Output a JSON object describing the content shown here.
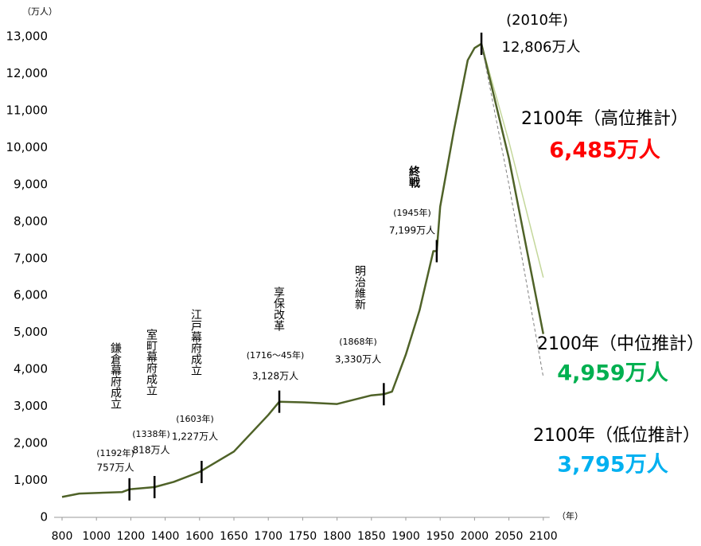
{
  "chart_data": {
    "type": "line",
    "y_unit_label": "（万人）",
    "x_unit_label": "（年）",
    "xlim": [
      800,
      2100
    ],
    "xticks": [
      800,
      1000,
      1200,
      1400,
      1600,
      1650,
      1700,
      1750,
      1800,
      1850,
      1900,
      1950,
      2000,
      2050,
      2100
    ],
    "ylim": [
      0,
      13000
    ],
    "yticks": [
      0,
      {
        "value": 1000,
        "label": "1,000"
      },
      {
        "value": 2000,
        "label": "2,000"
      },
      {
        "value": 3000,
        "label": "3,000"
      },
      {
        "value": 4000,
        "label": "4,000"
      },
      {
        "value": 5000,
        "label": "5,000"
      },
      {
        "value": 6000,
        "label": "6,000"
      },
      {
        "value": 7000,
        "label": "7,000"
      },
      {
        "value": 8000,
        "label": "8,000"
      },
      {
        "value": 9000,
        "label": "9,000"
      },
      {
        "value": 10000,
        "label": "10,000"
      },
      {
        "value": 11000,
        "label": "11,000"
      },
      {
        "value": 12000,
        "label": "12,000"
      },
      {
        "value": 13000,
        "label": "13,000"
      }
    ],
    "series": [
      {
        "color": "#4f6228",
        "style": "solid",
        "x": [
          800,
          900,
          1150,
          1192,
          1338,
          1450,
          1600,
          1650,
          1700,
          1716,
          1750,
          1800,
          1850,
          1868,
          1880,
          1900,
          1920,
          1940,
          1945,
          1950,
          1970,
          1990,
          2000,
          2010
        ],
        "values": [
          551,
          644,
          684,
          757,
          818,
          960,
          1227,
          1781,
          2769,
          3128,
          3110,
          3065,
          3300,
          3330,
          3400,
          4400,
          5600,
          7200,
          7199,
          8400,
          10467,
          12361,
          12693,
          12806
        ]
      },
      {
        "name": "2100年（高位推計）",
        "color": "#c4d79b",
        "style": "solid",
        "end_label": "6,485万人",
        "label_color": "#ff0000",
        "x": [
          2010,
          2050,
          2100
        ],
        "values": [
          12806,
          10160,
          6485
        ]
      },
      {
        "name": "2100年（中位推計）",
        "color": "#4f6228",
        "style": "solid",
        "end_label": "4,959万人",
        "label_color": "#00b050",
        "x": [
          2010,
          2050,
          2100
        ],
        "values": [
          12806,
          9708,
          4959
        ]
      },
      {
        "name": "2100年（低位推計）",
        "color": "#7f7f7f",
        "style": "dashed",
        "end_label": "3,795万人",
        "label_color": "#00b0f0",
        "x": [
          2010,
          2050,
          2100
        ],
        "values": [
          12806,
          9000,
          3795
        ]
      }
    ],
    "events": [
      {
        "name": "鎌倉幕府成立",
        "x": 1192,
        "x_label": "(1192年)",
        "value": 757,
        "value_label": "757万人"
      },
      {
        "name": "室町幕府成立",
        "x": 1338,
        "x_label": "(1338年)",
        "value": 818,
        "value_label": "818万人"
      },
      {
        "name": "江戸幕府成立",
        "x": 1603,
        "x_label": "(1603年)",
        "value": 1227,
        "value_label": "1,227万人"
      },
      {
        "name": "享保改革",
        "x": 1716,
        "x_label": "(1716～45年)",
        "value": 3128,
        "value_label": "3,128万人"
      },
      {
        "name": "明治維新",
        "x": 1868,
        "x_label": "(1868年)",
        "value": 3330,
        "value_label": "3,330万人"
      },
      {
        "name": "終戦",
        "x": 1945,
        "x_label": "(1945年)",
        "value": 7199,
        "value_label": "7,199万人"
      },
      {
        "x": 2010,
        "x_label": "(2010年)",
        "value": 12806,
        "value_label": "12,806万人"
      }
    ]
  }
}
